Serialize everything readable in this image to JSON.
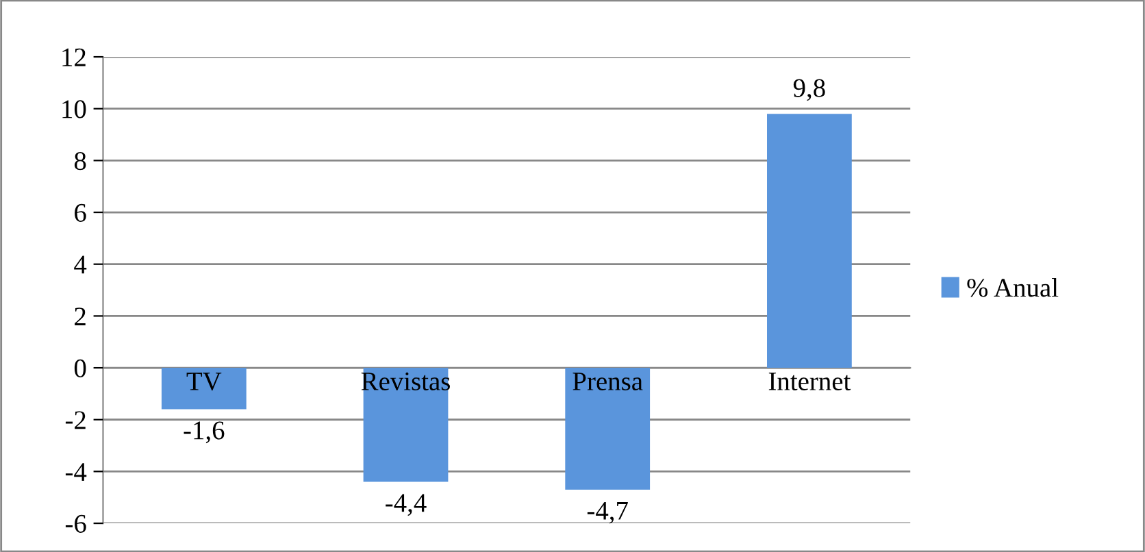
{
  "chart_data": {
    "type": "bar",
    "categories": [
      "TV",
      "Revistas",
      "Prensa",
      "Internet"
    ],
    "series": [
      {
        "name": "% Anual",
        "color": "#5a95dc",
        "values": [
          -1.6,
          -4.4,
          -4.7,
          9.8
        ],
        "value_labels": [
          "-1,6",
          "-4,4",
          "-4,7",
          "9,8"
        ]
      }
    ],
    "ylim": [
      -6,
      12
    ],
    "yticks": [
      -6,
      -4,
      -2,
      0,
      2,
      4,
      6,
      8,
      10,
      12
    ],
    "grid": "y",
    "legend": "right"
  }
}
